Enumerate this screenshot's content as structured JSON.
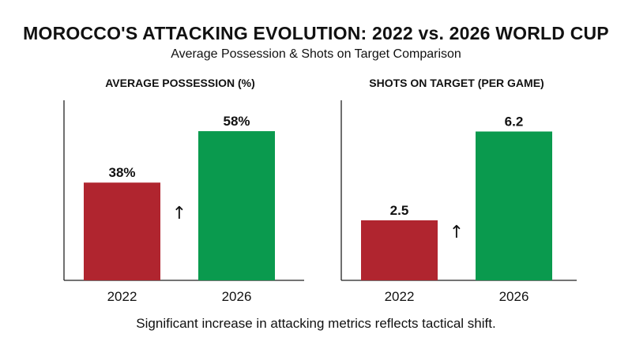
{
  "title": "MOROCCO'S ATTACKING EVOLUTION: 2022 vs. 2026 WORLD CUP",
  "subtitle": "Average Possession & Shots on Target Comparison",
  "footnote": "Significant increase in attacking metrics reflects tactical shift.",
  "arrow_glyph": "↑",
  "colors": {
    "year_2022": "#b0252f",
    "year_2026": "#0a9a4e",
    "axis": "#222222"
  },
  "chart_data": [
    {
      "type": "bar",
      "title": "AVERAGE POSSESSION (%)",
      "categories": [
        "2022",
        "2026"
      ],
      "values": [
        38,
        58
      ],
      "value_labels": [
        "38%",
        "58%"
      ],
      "ylim": [
        0,
        70
      ],
      "grid": false,
      "legend": "none"
    },
    {
      "type": "bar",
      "title": "SHOTS ON TARGET (PER GAME)",
      "categories": [
        "2022",
        "2026"
      ],
      "values": [
        2.5,
        6.2
      ],
      "value_labels": [
        "2.5",
        "6.2"
      ],
      "ylim": [
        0,
        7.5
      ],
      "grid": false,
      "legend": "none"
    }
  ]
}
